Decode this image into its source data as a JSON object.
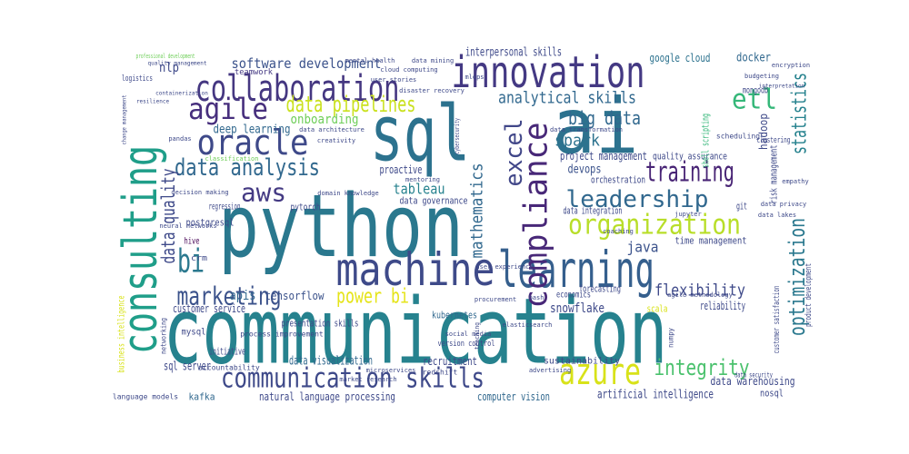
{
  "chart_data": {
    "type": "wordcloud",
    "words": [
      "communication",
      "python",
      "sql",
      "ai",
      "machine",
      "learning",
      "innovation",
      "collaboration",
      "consulting",
      "oracle",
      "agile",
      "data analysis",
      "aws",
      "bi",
      "marketing",
      "azure",
      "communication skills",
      "compliance",
      "excel",
      "organization",
      "training",
      "leadership",
      "etl",
      "optimization",
      "statistics",
      "integrity",
      "flexibility",
      "power bi",
      "data pipelines",
      "software development",
      "analytical skills",
      "big data",
      "spark",
      "data quality",
      "tableau",
      "mathematics",
      "java",
      "apis",
      "tensorflow",
      "onboarding",
      "deep learning",
      "interpersonal skills",
      "google cloud",
      "docker",
      "nlp",
      "teamwork",
      "artificial intelligence",
      "natural language processing",
      "computer vision",
      "data visualization",
      "recruitment",
      "snowflake",
      "kubernetes",
      "version control",
      "presentation skills",
      "sql server",
      "customer service",
      "kafka",
      "nosql",
      "data warehousing",
      "reliability",
      "scala",
      "forecasting",
      "time management",
      "devops",
      "project management",
      "quality assurance",
      "orchestration",
      "data integration",
      "proactive",
      "data governance",
      "pytorch",
      "regression",
      "postgresql",
      "hive",
      "crm",
      "mysql",
      "initiative",
      "risk management",
      "hadoop",
      "shell scripting",
      "mongodb",
      "git",
      "economics",
      "product development",
      "business intelligence",
      "networking",
      "customer satisfaction",
      "clustering",
      "data security",
      "logistics",
      "professional development",
      "data architecture",
      "creativity",
      "cybersecurity",
      "cloud computing",
      "data mining",
      "mlops",
      "disaster recovery",
      "mentoring",
      "decision making",
      "classification",
      "change management",
      "pandas",
      "jupyter",
      "encryption",
      "neural networks",
      "microservices",
      "redshift",
      "advertising",
      "teaching",
      "sustainability",
      "process improvement",
      "accountability",
      "data lakes",
      "empathy",
      "agile methodology",
      "coaching",
      "social media",
      "language models",
      "elasticsearch",
      "bash",
      "procurement",
      "user experience",
      "numpy",
      "mental health",
      "user stories",
      "market research",
      "domain knowledge",
      "quality management",
      "budgeting",
      "scheduling",
      "data privacy",
      "resilience",
      "containerization",
      "interpretation",
      "data transformation"
    ]
  }
}
